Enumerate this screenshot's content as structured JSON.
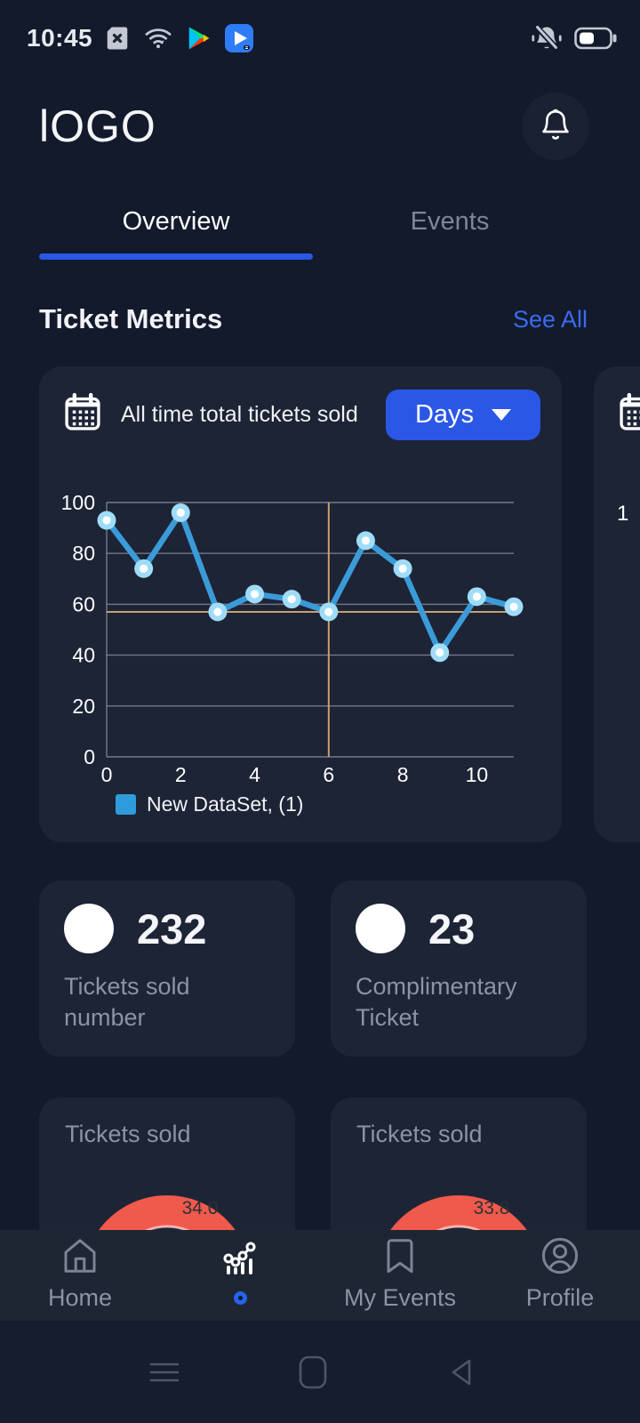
{
  "status_bar": {
    "time": "10:45",
    "left_icons": [
      "sd-card-missing",
      "wifi",
      "play-store",
      "play-video"
    ],
    "right_icons": [
      "notifications-muted",
      "battery"
    ]
  },
  "header": {
    "logo": "lOGO"
  },
  "tabs": {
    "overview": "Overview",
    "events": "Events"
  },
  "section": {
    "title": "Ticket Metrics",
    "see_all": "See All"
  },
  "chart_card": {
    "title": "All time total tickets sold",
    "range_button": "Days"
  },
  "peek_card": {
    "partial_tick": "1"
  },
  "chart_data": [
    {
      "type": "line",
      "title": "All time total tickets sold",
      "x": [
        0,
        1,
        2,
        3,
        4,
        5,
        6,
        7,
        8,
        9,
        10,
        11
      ],
      "values": [
        93,
        74,
        96,
        57,
        64,
        62,
        57,
        85,
        74,
        41,
        63,
        59
      ],
      "series_name": "New DataSet, (1)",
      "xticks": [
        0,
        2,
        4,
        6,
        8,
        10
      ],
      "yticks": [
        0,
        20,
        40,
        60,
        80,
        100
      ],
      "xlim": [
        0,
        11
      ],
      "ylim": [
        0,
        100
      ],
      "grid": true,
      "legend_position": "bottom-left",
      "crosshair": {
        "x": 6,
        "y": 57
      },
      "line_color": "#3b9bd9",
      "point_ring_color": "#9fdcf8",
      "point_center_color": "#ffffff",
      "legend_swatch_color": "#2d9cdb",
      "crosshair_color": "#c9a06b",
      "grid_color": "rgba(186,191,201,0.55)"
    },
    {
      "type": "gauge",
      "title": "Tickets sold",
      "value": 34.0,
      "value_label": "34.0",
      "segments": [
        {
          "name": "yellow",
          "color": "#f2c511",
          "fraction": 0.14
        },
        {
          "name": "red",
          "color": "#ef5a4c",
          "fraction": 0.86
        }
      ],
      "divider_color": "#1d2436"
    },
    {
      "type": "gauge",
      "title": "Tickets sold",
      "value": 33.8,
      "value_label": "33.8",
      "segments": [
        {
          "name": "yellow",
          "color": "#f2c511",
          "fraction": 0.14
        },
        {
          "name": "red",
          "color": "#ef5a4c",
          "fraction": 0.86
        }
      ],
      "divider_color": "#1d2436"
    }
  ],
  "stats": [
    {
      "value": "232",
      "label": "Tickets sold number"
    },
    {
      "value": "23",
      "label": "Complimentary Ticket"
    }
  ],
  "bottom_nav": {
    "items": [
      {
        "label": "Home",
        "icon": "home",
        "active": false
      },
      {
        "label": "",
        "icon": "stats-line-chart",
        "active": true
      },
      {
        "label": "My Events",
        "icon": "bookmark",
        "active": false
      },
      {
        "label": "Profile",
        "icon": "profile",
        "active": false
      }
    ]
  },
  "android_nav": [
    "menu",
    "home-square",
    "back"
  ],
  "colors": {
    "page_bg": "#121a2c",
    "card_bg": "#1d2436",
    "accent_blue": "#2a57e6",
    "link_blue": "#3a6bf0",
    "muted_text": "#8b93a4",
    "gauge_red": "#ef5a4c",
    "gauge_yellow": "#f2c511"
  }
}
